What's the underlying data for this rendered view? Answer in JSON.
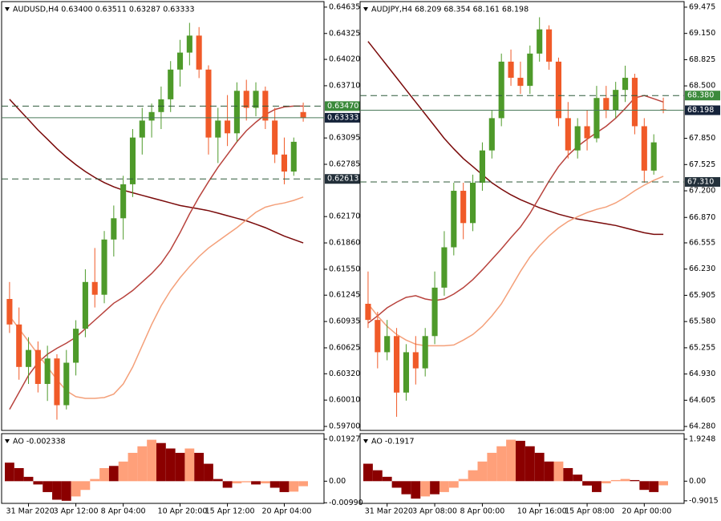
{
  "chart_data": [
    {
      "type": "candlestick",
      "title": "AUDUSD,H4  0.63400 0.63511 0.63287 0.63333",
      "ylim": [
        0.59653,
        0.647
      ],
      "yticks": [
        0.64635,
        0.64325,
        {
          "value": 0.6402,
          "label": "0.64020"
        },
        {
          "value": 0.6371,
          "label": "0.63710"
        },
        0.63095,
        0.62785,
        {
          "value": 0.6217,
          "label": "0.62170"
        },
        {
          "value": 0.6186,
          "label": "0.61860"
        },
        {
          "value": 0.6155,
          "label": "0.61550"
        },
        0.61245,
        0.60935,
        0.60625,
        {
          "value": 0.6032,
          "label": "0.60320"
        },
        {
          "value": 0.6001,
          "label": "0.60010"
        },
        {
          "value": 0.597,
          "label": "0.59700"
        }
      ],
      "up_color": "#4e9a2a",
      "down_color": "#f05a28",
      "open": [
        0.612,
        0.609,
        0.604,
        0.606,
        0.602,
        0.605,
        0.5995,
        0.6045,
        0.6085,
        0.614,
        0.6125,
        0.619,
        0.6215,
        0.6255,
        0.631,
        0.633,
        0.634,
        0.6355,
        0.639,
        0.641,
        0.643,
        0.639,
        0.631,
        0.633,
        0.6315,
        0.6365,
        0.6345,
        0.6365,
        0.633,
        0.629,
        0.627,
        0.634
      ],
      "high": [
        0.614,
        0.611,
        0.6075,
        0.607,
        0.6065,
        0.6055,
        0.606,
        0.6095,
        0.6155,
        0.618,
        0.62,
        0.623,
        0.6265,
        0.632,
        0.6345,
        0.635,
        0.637,
        0.64,
        0.6425,
        0.6445,
        0.644,
        0.6395,
        0.6345,
        0.636,
        0.6375,
        0.6378,
        0.6375,
        0.637,
        0.6345,
        0.631,
        0.631,
        0.63511
      ],
      "low": [
        0.608,
        0.6025,
        0.602,
        0.601,
        0.6,
        0.5978,
        0.599,
        0.603,
        0.6075,
        0.611,
        0.6115,
        0.617,
        0.619,
        0.624,
        0.629,
        0.631,
        0.632,
        0.634,
        0.637,
        0.6395,
        0.638,
        0.629,
        0.628,
        0.63,
        0.6305,
        0.633,
        0.6335,
        0.632,
        0.628,
        0.6255,
        0.6265,
        0.63287
      ],
      "close": [
        0.609,
        0.604,
        0.606,
        0.602,
        0.605,
        0.5995,
        0.6045,
        0.6085,
        0.614,
        0.6125,
        0.619,
        0.6215,
        0.6255,
        0.631,
        0.633,
        0.634,
        0.6355,
        0.639,
        0.641,
        0.643,
        0.639,
        0.631,
        0.633,
        0.6315,
        0.6365,
        0.6345,
        0.6365,
        0.633,
        0.629,
        0.627,
        0.6305,
        0.63333
      ],
      "lines": [
        {
          "color": "#7a0a0a",
          "values": [
            0.6355,
            0.6343,
            0.6331,
            0.6319,
            0.6308,
            0.6297,
            0.6287,
            0.6278,
            0.627,
            0.6263,
            0.6257,
            0.6252,
            0.6248,
            0.6245,
            0.6242,
            0.6239,
            0.6236,
            0.6233,
            0.623,
            0.6228,
            0.6226,
            0.6224,
            0.6221,
            0.6218,
            0.6215,
            0.6212,
            0.6208,
            0.6204,
            0.6199,
            0.6194,
            0.619,
            0.6186
          ]
        },
        {
          "color": "#b8433d",
          "values": [
            0.599,
            0.601,
            0.603,
            0.6045,
            0.6055,
            0.6062,
            0.6068,
            0.6075,
            0.6085,
            0.6095,
            0.6105,
            0.6115,
            0.6122,
            0.613,
            0.614,
            0.615,
            0.6162,
            0.6178,
            0.6198,
            0.622,
            0.624,
            0.6258,
            0.6275,
            0.629,
            0.6305,
            0.6318,
            0.6328,
            0.6337,
            0.6343,
            0.6346,
            0.6347,
            0.6347
          ]
        },
        {
          "color": "#f4a07a",
          "values": [
            0.61,
            0.6085,
            0.607,
            0.6055,
            0.604,
            0.6025,
            0.6012,
            0.6005,
            0.6003,
            0.6003,
            0.6004,
            0.6008,
            0.602,
            0.604,
            0.6065,
            0.609,
            0.6112,
            0.613,
            0.6145,
            0.6158,
            0.617,
            0.618,
            0.6188,
            0.6196,
            0.6204,
            0.6213,
            0.6222,
            0.6228,
            0.6231,
            0.6233,
            0.6236,
            0.624
          ]
        }
      ],
      "levels": [
        {
          "value": 0.6347,
          "label": "0.63470",
          "style": "dashed",
          "color": "#2f5a3a",
          "label_color": "#3b8a3b"
        },
        {
          "value": 0.63333,
          "label": "0.63333",
          "style": "solid",
          "color": "#4a7a5a",
          "label_color": "#15233a"
        },
        {
          "value": 0.62613,
          "label": "0.62613",
          "style": "dashed",
          "color": "#2f5a3a",
          "label_color": "#23303a"
        }
      ]
    },
    {
      "type": "bar",
      "title": "AO -0.002338",
      "ylim": [
        -0.01017,
        0.02181
      ],
      "yticks": [
        0.01927,
        {
          "value": 0,
          "label": "0.00"
        },
        {
          "value": -0.0099,
          "label": "-0.00990"
        }
      ],
      "values": [
        0.0085,
        0.006,
        0.002,
        -0.0015,
        -0.005,
        -0.0085,
        -0.009,
        -0.007,
        -0.004,
        0.001,
        0.006,
        0.007,
        0.009,
        0.013,
        0.016,
        0.019,
        0.0175,
        0.015,
        0.013,
        0.015,
        0.013,
        0.008,
        0.001,
        -0.003,
        -0.001,
        -0.0005,
        -0.0015,
        -0.001,
        -0.003,
        -0.005,
        -0.0048,
        -0.0023
      ],
      "colors": [
        "#8b0000",
        "#8b0000",
        "#8b0000",
        "#8b0000",
        "#8b0000",
        "#8b0000",
        "#8b0000",
        "#ffa07a",
        "#ffa07a",
        "#ffa07a",
        "#ffa07a",
        "#8b0000",
        "#ffa07a",
        "#ffa07a",
        "#ffa07a",
        "#ffa07a",
        "#8b0000",
        "#8b0000",
        "#8b0000",
        "#ffa07a",
        "#8b0000",
        "#8b0000",
        "#8b0000",
        "#8b0000",
        "#ffa07a",
        "#ffa07a",
        "#8b0000",
        "#ffa07a",
        "#8b0000",
        "#8b0000",
        "#ffa07a",
        "#ffa07a"
      ],
      "xticks": [
        {
          "value": 2,
          "label": "31 Mar 2020"
        },
        {
          "value": 7,
          "label": "3 Apr 12:00"
        },
        {
          "value": 12,
          "label": "8 Apr 04:00"
        },
        {
          "value": 18,
          "label": "10 Apr 20:00"
        },
        {
          "value": 23,
          "label": "15 Apr 12:00"
        },
        {
          "value": 29,
          "label": "20 Apr 04:00"
        }
      ]
    },
    {
      "type": "candlestick",
      "title": "AUDJPY,H4  68.209 68.354 68.161 68.198",
      "ylim": [
        64.231,
        69.544
      ],
      "yticks": [
        69.475,
        {
          "value": 69.15,
          "label": "69.150"
        },
        68.825,
        {
          "value": 68.5,
          "label": "68.500"
        },
        {
          "value": 67.85,
          "label": "67.850"
        },
        67.525,
        {
          "value": 67.2,
          "label": "67.200"
        },
        {
          "value": 66.87,
          "label": "66.870"
        },
        66.555,
        {
          "value": 66.23,
          "label": "66.230"
        },
        65.905,
        {
          "value": 65.58,
          "label": "65.580"
        },
        65.255,
        {
          "value": 64.93,
          "label": "64.930"
        },
        64.605,
        {
          "value": 64.28,
          "label": "64.280"
        }
      ],
      "up_color": "#4e9a2a",
      "down_color": "#f05a28",
      "open": [
        65.8,
        65.6,
        65.2,
        65.4,
        64.7,
        65.2,
        65.0,
        65.4,
        66.0,
        66.5,
        67.2,
        66.8,
        67.3,
        67.7,
        68.1,
        68.8,
        68.6,
        68.5,
        68.9,
        69.2,
        68.8,
        68.1,
        67.7,
        68.0,
        67.85,
        68.35,
        68.2,
        68.45,
        68.6,
        68.0,
        67.45,
        68.209
      ],
      "high": [
        66.2,
        65.7,
        65.6,
        65.5,
        65.3,
        65.4,
        65.5,
        66.2,
        66.7,
        67.3,
        67.3,
        67.4,
        67.8,
        68.2,
        68.9,
        68.95,
        68.8,
        69.0,
        69.35,
        69.25,
        68.85,
        68.3,
        68.1,
        68.2,
        68.5,
        68.5,
        68.55,
        68.75,
        68.65,
        68.1,
        67.9,
        68.354
      ],
      "low": [
        65.5,
        65.0,
        65.1,
        64.4,
        64.6,
        64.8,
        64.9,
        65.3,
        65.9,
        66.4,
        66.6,
        66.7,
        67.2,
        67.6,
        68.0,
        68.5,
        68.4,
        68.4,
        68.8,
        68.7,
        68.0,
        67.6,
        67.6,
        67.7,
        67.8,
        68.1,
        68.1,
        68.3,
        67.9,
        67.3,
        67.4,
        68.161
      ],
      "close": [
        65.6,
        65.2,
        65.4,
        64.7,
        65.2,
        65.0,
        65.4,
        66.0,
        66.5,
        67.2,
        66.8,
        67.3,
        67.7,
        68.1,
        68.8,
        68.6,
        68.5,
        68.9,
        69.2,
        68.8,
        68.1,
        67.7,
        68.0,
        67.85,
        68.35,
        68.2,
        68.45,
        68.6,
        68.0,
        67.45,
        67.8,
        68.198
      ],
      "lines": [
        {
          "color": "#7a0a0a",
          "values": [
            69.05,
            68.9,
            68.75,
            68.6,
            68.45,
            68.3,
            68.15,
            68.0,
            67.85,
            67.72,
            67.6,
            67.5,
            67.4,
            67.3,
            67.22,
            67.15,
            67.09,
            67.04,
            66.99,
            66.95,
            66.91,
            66.88,
            66.85,
            66.83,
            66.81,
            66.79,
            66.77,
            66.74,
            66.71,
            66.68,
            66.66,
            66.66
          ]
        },
        {
          "color": "#b8433d",
          "values": [
            65.56,
            65.65,
            65.75,
            65.82,
            65.88,
            65.9,
            65.86,
            65.84,
            65.86,
            65.92,
            66.0,
            66.1,
            66.22,
            66.35,
            66.48,
            66.62,
            66.75,
            66.92,
            67.12,
            67.32,
            67.5,
            67.64,
            67.75,
            67.84,
            67.92,
            68.0,
            68.1,
            68.22,
            68.35,
            68.38,
            68.34,
            68.3
          ]
        },
        {
          "color": "#f4a07a",
          "values": [
            65.8,
            65.65,
            65.52,
            65.42,
            65.35,
            65.3,
            65.28,
            65.28,
            65.28,
            65.29,
            65.35,
            65.42,
            65.52,
            65.65,
            65.8,
            66.0,
            66.2,
            66.38,
            66.52,
            66.64,
            66.74,
            66.82,
            66.88,
            66.93,
            66.97,
            67.0,
            67.05,
            67.12,
            67.2,
            67.27,
            67.33,
            67.38
          ]
        }
      ],
      "levels": [
        {
          "value": 68.38,
          "label": "68.380",
          "style": "dashed",
          "color": "#2f5a3a",
          "label_color": "#3b8a3b"
        },
        {
          "value": 68.198,
          "label": "68.198",
          "style": "solid",
          "color": "#4a7a5a",
          "label_color": "#15233a"
        },
        {
          "value": 67.31,
          "label": "67.310",
          "style": "dashed",
          "color": "#2f5a3a",
          "label_color": "#23303a"
        }
      ]
    },
    {
      "type": "bar",
      "title": "AO -0.1917",
      "ylim": [
        -1.018,
        2.179
      ],
      "yticks": [
        1.9248,
        {
          "value": 0,
          "label": "0.00"
        },
        -0.9015
      ],
      "values": [
        0.8,
        0.5,
        0.2,
        -0.3,
        -0.6,
        -0.8,
        -0.7,
        -0.6,
        -0.5,
        -0.3,
        0.1,
        0.5,
        0.9,
        1.3,
        1.6,
        1.9,
        1.85,
        1.6,
        1.3,
        0.9,
        0.9,
        0.6,
        0.3,
        -0.2,
        -0.5,
        -0.1,
        0.05,
        0.1,
        0.05,
        -0.4,
        -0.5,
        -0.19
      ],
      "colors": [
        "#8b0000",
        "#8b0000",
        "#8b0000",
        "#8b0000",
        "#8b0000",
        "#8b0000",
        "#ffa07a",
        "#8b0000",
        "#ffa07a",
        "#ffa07a",
        "#ffa07a",
        "#ffa07a",
        "#ffa07a",
        "#ffa07a",
        "#ffa07a",
        "#ffa07a",
        "#8b0000",
        "#8b0000",
        "#8b0000",
        "#8b0000",
        "#ffa07a",
        "#8b0000",
        "#8b0000",
        "#8b0000",
        "#8b0000",
        "#ffa07a",
        "#ffa07a",
        "#ffa07a",
        "#8b0000",
        "#8b0000",
        "#8b0000",
        "#ffa07a"
      ],
      "xticks": [
        {
          "value": 2,
          "label": "31 Mar 2020"
        },
        {
          "value": 7,
          "label": "3 Apr 08:00"
        },
        {
          "value": 12,
          "label": "8 Apr 00:00"
        },
        {
          "value": 18,
          "label": "10 Apr 16:00"
        },
        {
          "value": 23,
          "label": "15 Apr 08:00"
        },
        {
          "value": 29,
          "label": "20 Apr 00:00"
        }
      ]
    }
  ]
}
